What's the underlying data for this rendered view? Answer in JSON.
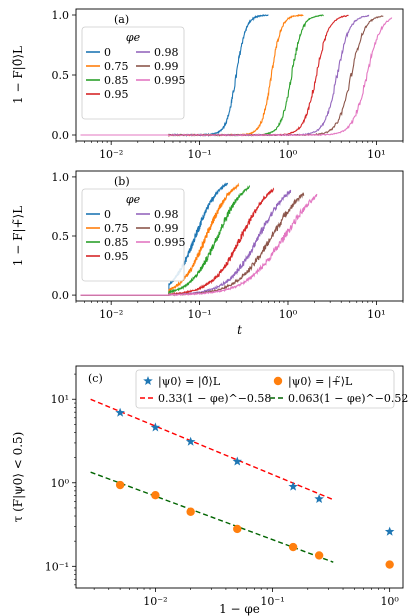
{
  "chart_data": [
    {
      "panel": "(a)",
      "type": "line",
      "xscale": "log",
      "xlim": [
        0.004,
        20
      ],
      "ylim": [
        -0.05,
        1.05
      ],
      "xticks": [
        {
          "v": 0.01,
          "label": "10⁻²"
        },
        {
          "v": 0.1,
          "label": "10⁻¹"
        },
        {
          "v": 1,
          "label": "10⁰"
        },
        {
          "v": 10,
          "label": "10¹"
        }
      ],
      "yticks": [
        {
          "v": 0,
          "label": "0.0"
        },
        {
          "v": 0.5,
          "label": "0.5"
        },
        {
          "v": 1,
          "label": "1.0"
        }
      ],
      "ylabel": "1 − F|0̃⟩L",
      "xlabel": "",
      "legend": {
        "title": "φe",
        "placement": "upper-left",
        "columns": 2
      },
      "series": [
        {
          "name": "0",
          "color": "#1f77b4",
          "center": 0.26,
          "width": 0.055
        },
        {
          "name": "0.75",
          "color": "#ff7f0e",
          "center": 0.65,
          "width": 0.055
        },
        {
          "name": "0.85",
          "color": "#2ca02c",
          "center": 1.1,
          "width": 0.06
        },
        {
          "name": "0.95",
          "color": "#d62728",
          "center": 2.1,
          "width": 0.07
        },
        {
          "name": "0.98",
          "color": "#9467bd",
          "center": 3.6,
          "width": 0.07
        },
        {
          "name": "0.99",
          "color": "#8c564b",
          "center": 5.2,
          "width": 0.075
        },
        {
          "name": "0.995",
          "color": "#e377c2",
          "center": 7.8,
          "width": 0.08
        }
      ]
    },
    {
      "panel": "(b)",
      "type": "line",
      "xscale": "log",
      "xlim": [
        0.004,
        20
      ],
      "ylim": [
        -0.05,
        1.05
      ],
      "xticks": [
        {
          "v": 0.01,
          "label": "10⁻²"
        },
        {
          "v": 0.1,
          "label": "10⁻¹"
        },
        {
          "v": 1,
          "label": "10⁰"
        },
        {
          "v": 10,
          "label": "10¹"
        }
      ],
      "yticks": [
        {
          "v": 0,
          "label": "0.0"
        },
        {
          "v": 0.5,
          "label": "0.5"
        },
        {
          "v": 1,
          "label": "1.0"
        }
      ],
      "ylabel": "1 − F|+̃⟩L",
      "xlabel": "t",
      "legend": {
        "title": "φe",
        "placement": "upper-left",
        "columns": 2
      },
      "series": [
        {
          "name": "0",
          "color": "#1f77b4",
          "center": 0.09,
          "width": 0.13
        },
        {
          "name": "0.75",
          "color": "#ff7f0e",
          "center": 0.12,
          "width": 0.14
        },
        {
          "name": "0.85",
          "color": "#2ca02c",
          "center": 0.16,
          "width": 0.15
        },
        {
          "name": "0.95",
          "color": "#d62728",
          "center": 0.3,
          "width": 0.17
        },
        {
          "name": "0.98",
          "color": "#9467bd",
          "center": 0.47,
          "width": 0.18
        },
        {
          "name": "0.99",
          "color": "#8c564b",
          "center": 0.66,
          "width": 0.2
        },
        {
          "name": "0.995",
          "color": "#e377c2",
          "center": 0.92,
          "width": 0.22
        }
      ]
    },
    {
      "panel": "(c)",
      "type": "scatter",
      "xscale": "log",
      "yscale": "log",
      "xlim": [
        0.0021,
        1.3
      ],
      "ylim": [
        0.055,
        25
      ],
      "xticks": [
        {
          "v": 0.01,
          "label": "10⁻²"
        },
        {
          "v": 0.1,
          "label": "10⁻¹"
        },
        {
          "v": 1,
          "label": "10⁰"
        }
      ],
      "yticks": [
        {
          "v": 0.1,
          "label": "10⁻¹"
        },
        {
          "v": 1,
          "label": "10⁰"
        },
        {
          "v": 10,
          "label": "10¹"
        }
      ],
      "xlabel": "1 − φe",
      "ylabel": "τ (F|ψ0⟩ < 0.5)",
      "legend": {
        "placement": "upper-center",
        "columns": 2
      },
      "series": [
        {
          "name": "|ψ0⟩ = |0̃⟩L",
          "marker": "star",
          "color": "#1f77b4",
          "x": [
            0.005,
            0.01,
            0.02,
            0.05,
            0.15,
            0.25,
            1
          ],
          "y": [
            6.9,
            4.6,
            3.1,
            1.8,
            0.9,
            0.64,
            0.26
          ]
        },
        {
          "name": "|ψ0⟩ = |+̃⟩L",
          "marker": "circle",
          "color": "#ff7f0e",
          "x": [
            0.005,
            0.01,
            0.02,
            0.05,
            0.15,
            0.25,
            1
          ],
          "y": [
            0.94,
            0.71,
            0.45,
            0.28,
            0.17,
            0.135,
            0.105
          ]
        }
      ],
      "fits": [
        {
          "name": "0.33(1 − φe)^−0.58",
          "color": "#ff0000",
          "a": 0.33,
          "b": -0.58,
          "xrange": [
            0.0028,
            0.33
          ]
        },
        {
          "name": "0.063(1 − φe)^−0.52",
          "color": "#006400",
          "a": 0.063,
          "b": -0.52,
          "xrange": [
            0.0028,
            0.33
          ]
        }
      ]
    }
  ]
}
